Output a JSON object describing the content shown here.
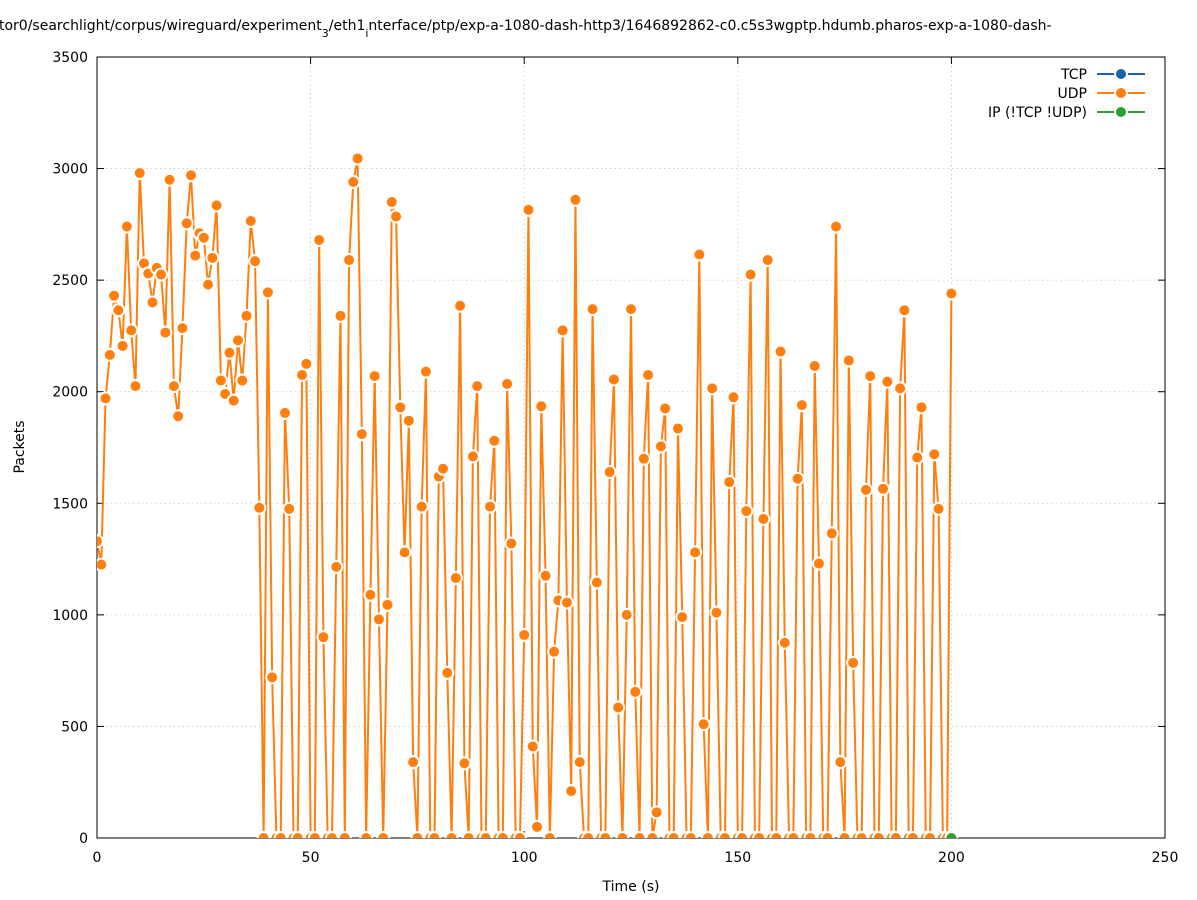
{
  "chart_data": {
    "type": "line",
    "title": [
      {
        "text": "tor0/searchlight/corpus/wireguard/experiment"
      },
      {
        "text": "3",
        "subscript": true
      },
      {
        "text": "/eth1"
      },
      {
        "text": "i",
        "subscript": true
      },
      {
        "text": "nterface/ptp/exp-a-1080-dash-http3/1646892862-c0.c5s3wgptp.hdumb.pharos-exp-a-1080-dash-"
      }
    ],
    "x_label": "Time (s)",
    "y_label": "Packets",
    "xlim": [
      0,
      250
    ],
    "ylim": [
      0,
      3500
    ],
    "xticks": [
      0,
      50,
      100,
      150,
      200,
      250
    ],
    "yticks": [
      0,
      500,
      1000,
      1500,
      2000,
      2500,
      3000,
      3500
    ],
    "grid": true,
    "legend": "top-right",
    "series": [
      {
        "name": "TCP",
        "color": "#1a62ae",
        "x": [],
        "values": []
      },
      {
        "name": "UDP",
        "color": "#ff7f0e",
        "x": [
          0,
          1,
          2,
          3,
          4,
          5,
          6,
          7,
          8,
          9,
          10,
          11,
          12,
          13,
          14,
          15,
          16,
          17,
          18,
          19,
          20,
          21,
          22,
          23,
          24,
          25,
          26,
          27,
          28,
          29,
          30,
          31,
          32,
          33,
          34,
          35,
          36,
          37,
          38,
          39,
          40,
          41,
          42,
          43,
          44,
          45,
          46,
          47,
          48,
          49,
          50,
          51,
          52,
          53,
          54,
          55,
          56,
          57,
          58,
          59,
          60,
          61,
          62,
          63,
          64,
          65,
          66,
          67,
          68,
          69,
          70,
          71,
          72,
          73,
          74,
          75,
          76,
          77,
          78,
          79,
          80,
          81,
          82,
          83,
          84,
          85,
          86,
          87,
          88,
          89,
          90,
          91,
          92,
          93,
          94,
          95,
          96,
          97,
          98,
          99,
          100,
          101,
          102,
          103,
          104,
          105,
          106,
          107,
          108,
          109,
          110,
          111,
          112,
          113,
          114,
          115,
          116,
          117,
          118,
          119,
          120,
          121,
          122,
          123,
          124,
          125,
          126,
          127,
          128,
          129,
          130,
          131,
          132,
          133,
          134,
          135,
          136,
          137,
          138,
          139,
          140,
          141,
          142,
          143,
          144,
          145,
          146,
          147,
          148,
          149,
          150,
          151,
          152,
          153,
          154,
          155,
          156,
          157,
          158,
          159,
          160,
          161,
          162,
          163,
          164,
          165,
          166,
          167,
          168,
          169,
          170,
          171,
          172,
          173,
          174,
          175,
          176,
          177,
          178,
          179,
          180,
          181,
          182,
          183,
          184,
          185,
          186,
          187,
          188,
          189,
          190,
          191,
          192,
          193,
          194,
          195,
          196,
          197,
          198,
          199,
          200
        ],
        "values": [
          1330,
          1225,
          1970,
          2165,
          2430,
          2365,
          2205,
          2740,
          2275,
          2025,
          2980,
          2575,
          2530,
          2400,
          2555,
          2525,
          2265,
          2950,
          2025,
          1890,
          2285,
          2755,
          2970,
          2610,
          2710,
          2690,
          2480,
          2600,
          2835,
          2050,
          1990,
          2175,
          1960,
          2230,
          2050,
          2340,
          2765,
          2585,
          1480,
          0,
          2445,
          720,
          0,
          0,
          1905,
          1475,
          0,
          0,
          2075,
          2125,
          0,
          0,
          2680,
          900,
          0,
          0,
          1215,
          2340,
          0,
          2590,
          2940,
          3045,
          1810,
          0,
          1090,
          2070,
          980,
          0,
          1045,
          2850,
          2785,
          1930,
          1280,
          1870,
          340,
          0,
          1485,
          2090,
          0,
          0,
          1620,
          1655,
          740,
          0,
          1165,
          2385,
          335,
          0,
          1710,
          2025,
          0,
          0,
          1485,
          1780,
          0,
          0,
          2035,
          1320,
          0,
          0,
          910,
          2815,
          410,
          50,
          1935,
          1175,
          0,
          835,
          1065,
          2275,
          1055,
          210,
          2860,
          340,
          0,
          0,
          2370,
          1145,
          0,
          0,
          1640,
          2055,
          585,
          0,
          1000,
          2370,
          655,
          0,
          1700,
          2075,
          0,
          115,
          1755,
          1925,
          0,
          0,
          1835,
          990,
          0,
          0,
          1280,
          2615,
          510,
          0,
          2015,
          1010,
          0,
          0,
          1595,
          1975,
          0,
          0,
          1465,
          2525,
          0,
          0,
          1430,
          2590,
          0,
          0,
          2180,
          875,
          0,
          0,
          1610,
          1940,
          0,
          0,
          2115,
          1230,
          0,
          0,
          1365,
          2740,
          340,
          0,
          2140,
          785,
          0,
          0,
          1560,
          2070,
          0,
          0,
          1565,
          2045,
          0,
          0,
          2015,
          2365,
          0,
          0,
          1705,
          1930,
          0,
          0,
          1720,
          1475,
          0,
          0,
          2440
        ]
      },
      {
        "name": "IP (!TCP  !UDP)",
        "color": "#2ca02c",
        "x": [
          200
        ],
        "values": [
          0
        ]
      }
    ]
  }
}
